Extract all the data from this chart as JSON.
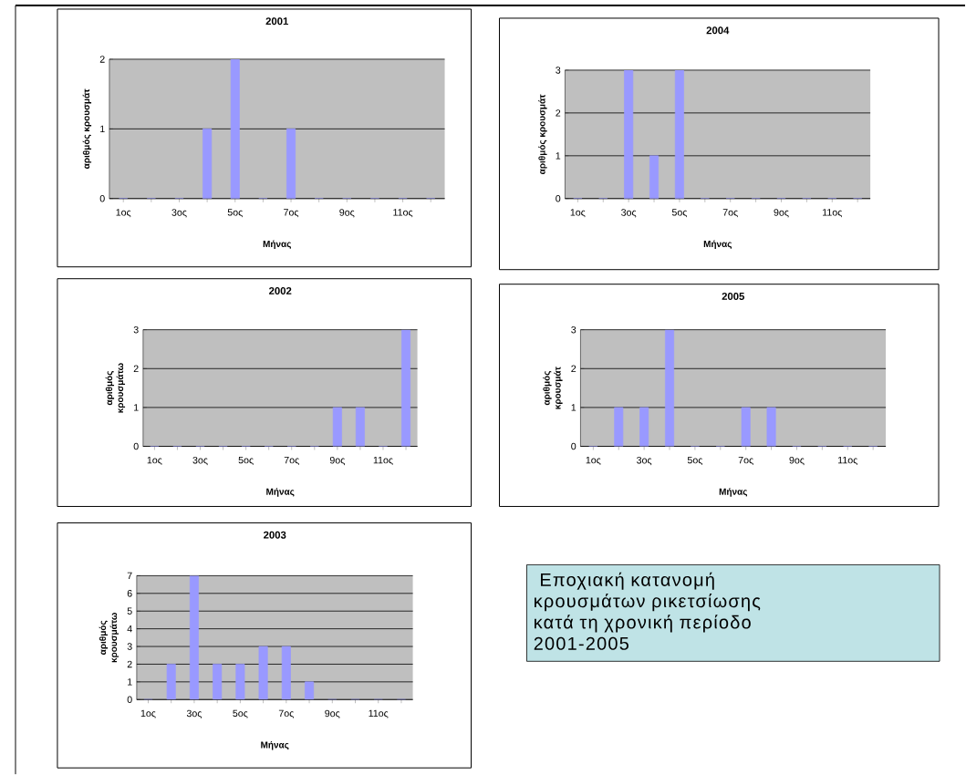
{
  "chart_data": [
    {
      "type": "bar",
      "title": "2001",
      "xlabel": "Μήνας",
      "ylabel": "αριθμός κρουσμάτ",
      "categories": [
        "1ος",
        null,
        "3ος",
        null,
        "5ος",
        null,
        "7ος",
        null,
        "9ος",
        null,
        "11ος",
        null
      ],
      "values": [
        0,
        0,
        0,
        1,
        2,
        0,
        1,
        0,
        0,
        0,
        0,
        0
      ],
      "color": "#9999ff",
      "ylim": [
        0,
        2
      ],
      "yticks": [
        0,
        1,
        2
      ],
      "grid": "y"
    },
    {
      "type": "bar",
      "title": "2004",
      "xlabel": "Μήνας",
      "ylabel": "αριθμός κρουσμάτ",
      "categories": [
        "1ος",
        null,
        "3ος",
        null,
        "5ος",
        null,
        "7ος",
        null,
        "9ος",
        null,
        "11ος",
        null
      ],
      "values": [
        0,
        0,
        3,
        1,
        3,
        0,
        0,
        0,
        0,
        0,
        0,
        0
      ],
      "color": "#9999ff",
      "ylim": [
        0,
        3
      ],
      "yticks": [
        0,
        1,
        2,
        3
      ],
      "grid": "y"
    },
    {
      "type": "bar",
      "title": "2002",
      "xlabel": "Μήνας",
      "ylabel": "αριθμός κρουσμάτω",
      "categories": [
        "1ος",
        null,
        "3ος",
        null,
        "5ος",
        null,
        "7ος",
        null,
        "9ος",
        null,
        "11ος",
        null
      ],
      "values": [
        0,
        0,
        0,
        0,
        0,
        0,
        0,
        0,
        1,
        1,
        0,
        3
      ],
      "color": "#9999ff",
      "ylim": [
        0,
        3
      ],
      "yticks": [
        0,
        1,
        2,
        3
      ],
      "grid": "y"
    },
    {
      "type": "bar",
      "title": "2005",
      "xlabel": "Μήνας",
      "ylabel": "αριθμός κρουσμάτ",
      "categories": [
        "1ος",
        null,
        "3ος",
        null,
        "5ος",
        null,
        "7ος",
        null,
        "9ος",
        null,
        "11ος",
        null
      ],
      "values": [
        0,
        1,
        1,
        3,
        0,
        0,
        1,
        1,
        0,
        0,
        0,
        0
      ],
      "color": "#9999ff",
      "ylim": [
        0,
        3
      ],
      "yticks": [
        0,
        1,
        2,
        3
      ],
      "grid": "y"
    },
    {
      "type": "bar",
      "title": "2003",
      "xlabel": "Μήνας",
      "ylabel": "αριθμός κρουσμάτω",
      "categories": [
        "1ος",
        null,
        "3ος",
        null,
        "5ος",
        null,
        "7ος",
        null,
        "9ος",
        null,
        "11ος",
        null
      ],
      "values": [
        0,
        2,
        7,
        2,
        2,
        3,
        3,
        1,
        0,
        0,
        0,
        0
      ],
      "color": "#9999ff",
      "ylim": [
        0,
        7
      ],
      "yticks": [
        0,
        1,
        2,
        3,
        4,
        5,
        6,
        7
      ],
      "grid": "y"
    },
    {
      "type": "other",
      "title": " Εποχιακή κατανομή κρουσμάτων ρικετσίωσης κατά τη χρονική περίοδο 2001-2005"
    }
  ]
}
